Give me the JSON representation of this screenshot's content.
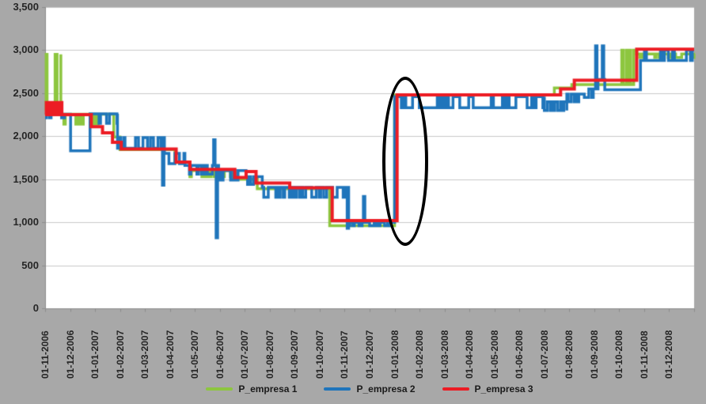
{
  "colors": {
    "canvas_bg": "#A8A8A8",
    "plot_bg": "#FFFFFF",
    "gridline": "#C9C9C9",
    "axis": "#8C8C8C",
    "text": "#262626",
    "annotation": "#000000"
  },
  "chart_data": {
    "type": "line",
    "title": "",
    "xlabel": "",
    "ylabel": "",
    "grid": true,
    "legend_position": "bottom",
    "x_axis": {
      "rotation": -90,
      "months_span": 26,
      "tick_labels": [
        "01-11-2006",
        "01-12-2006",
        "01-01-2007",
        "01-02-2007",
        "01-03-2007",
        "01-04-2007",
        "01-05-2007",
        "01-06-2007",
        "01-07-2007",
        "01-08-2007",
        "01-09-2007",
        "01-10-2007",
        "01-11-2007",
        "01-12-2007",
        "01-01-2008",
        "01-02-2008",
        "01-03-2008",
        "01-04-2008",
        "01-05-2008",
        "01-06-2008",
        "01-07-2008",
        "01-08-2008",
        "01-09-2008",
        "01-10-2008",
        "01-11-2008",
        "01-12-2008"
      ]
    },
    "y_axis": {
      "min": 0,
      "max": 3500,
      "tick_interval": 500,
      "tick_values": [
        0,
        500,
        1000,
        1500,
        2000,
        2500,
        3000,
        3500
      ],
      "tick_labels": [
        "0",
        "500",
        "1,000",
        "1,500",
        "2,000",
        "2,500",
        "3,000",
        "3,500"
      ]
    },
    "series": [
      {
        "name": "P_empresa 1",
        "color": "#8DC63F",
        "width": 3.5,
        "segments": [
          {
            "mode": "band",
            "t0": 0,
            "t1": 0.63,
            "lo": 2300,
            "hi": 2950,
            "duty": 0.5,
            "step": 0.04
          },
          {
            "mode": "band",
            "t0": 0.63,
            "t1": 2.75,
            "lo": 2140,
            "hi": 2255,
            "duty": 0.35
          },
          {
            "mode": "flat",
            "t0": 2.75,
            "t1": 3.0,
            "v": 1990
          },
          {
            "mode": "flat",
            "t0": 3.0,
            "t1": 5.2,
            "v": 1845
          },
          {
            "mode": "flat",
            "t0": 5.2,
            "t1": 5.8,
            "v": 1695
          },
          {
            "mode": "band",
            "t0": 5.8,
            "t1": 7.5,
            "lo": 1530,
            "hi": 1600,
            "duty": 0.3
          },
          {
            "mode": "flat",
            "t0": 7.5,
            "t1": 8.5,
            "v": 1500
          },
          {
            "mode": "flat",
            "t0": 8.5,
            "t1": 11.4,
            "v": 1390
          },
          {
            "mode": "flat",
            "t0": 11.4,
            "t1": 14.0,
            "v": 960
          },
          {
            "mode": "flat",
            "t0": 14.0,
            "t1": 20.4,
            "v": 2480
          },
          {
            "mode": "flat",
            "t0": 20.4,
            "t1": 21.1,
            "v": 2560
          },
          {
            "mode": "flat",
            "t0": 21.1,
            "t1": 23.1,
            "v": 2600
          },
          {
            "mode": "band",
            "t0": 23.1,
            "t1": 23.7,
            "lo": 2600,
            "hi": 3000,
            "duty": 0.5
          },
          {
            "mode": "band",
            "t0": 23.7,
            "t1": 26.0,
            "lo": 2915,
            "hi": 2955,
            "duty": 0.3
          }
        ]
      },
      {
        "name": "P_empresa 2",
        "color": "#1F75BB",
        "width": 3.5,
        "segments": [
          {
            "mode": "band",
            "t0": 0,
            "t1": 1.02,
            "lo": 2215,
            "hi": 2255,
            "duty": 0.3
          },
          {
            "mode": "flat",
            "t0": 1.02,
            "t1": 1.8,
            "v": 1830
          },
          {
            "mode": "band",
            "t0": 1.8,
            "t1": 2.9,
            "lo": 2150,
            "hi": 2260,
            "duty": 0.4
          },
          {
            "mode": "band",
            "t0": 2.9,
            "t1": 4.65,
            "lo": 1860,
            "hi": 1985,
            "duty": 0.4
          },
          {
            "mode": "spike",
            "t": 4.7,
            "v": 1430
          },
          {
            "mode": "band",
            "t0": 4.78,
            "t1": 5.6,
            "lo": 1680,
            "hi": 1800,
            "duty": 0.4
          },
          {
            "mode": "band",
            "t0": 5.6,
            "t1": 6.7,
            "lo": 1560,
            "hi": 1660,
            "duty": 0.4
          },
          {
            "mode": "spike",
            "t": 6.75,
            "v": 1960
          },
          {
            "mode": "spike",
            "t": 6.85,
            "v": 820
          },
          {
            "mode": "band",
            "t0": 6.95,
            "t1": 8.05,
            "lo": 1490,
            "hi": 1600,
            "duty": 0.4
          },
          {
            "mode": "band",
            "t0": 8.05,
            "t1": 8.7,
            "lo": 1440,
            "hi": 1530,
            "duty": 0.4
          },
          {
            "mode": "band",
            "t0": 8.7,
            "t1": 12.05,
            "lo": 1290,
            "hi": 1405,
            "duty": 0.4
          },
          {
            "mode": "spike",
            "t": 12.1,
            "v": 930
          },
          {
            "mode": "band",
            "t0": 12.15,
            "t1": 12.7,
            "lo": 960,
            "hi": 1000,
            "duty": 0.3
          },
          {
            "mode": "spike",
            "t": 12.75,
            "v": 1300
          },
          {
            "mode": "band",
            "t0": 12.82,
            "t1": 14.0,
            "lo": 960,
            "hi": 1000,
            "duty": 0.3
          },
          {
            "mode": "band",
            "t0": 14.0,
            "t1": 20.0,
            "lo": 2330,
            "hi": 2460,
            "duty": 0.5,
            "step": 0.09
          },
          {
            "mode": "band",
            "t0": 20.0,
            "t1": 20.9,
            "lo": 2300,
            "hi": 2400,
            "duty": 0.45
          },
          {
            "mode": "band",
            "t0": 20.9,
            "t1": 21.6,
            "lo": 2400,
            "hi": 2490,
            "duty": 0.4
          },
          {
            "mode": "band",
            "t0": 21.6,
            "t1": 22.0,
            "lo": 2450,
            "hi": 2550,
            "duty": 0.4
          },
          {
            "mode": "spike",
            "t": 22.05,
            "v": 3050
          },
          {
            "mode": "flat",
            "t0": 22.15,
            "t1": 22.25,
            "v": 2660
          },
          {
            "mode": "spike",
            "t": 22.32,
            "v": 3050
          },
          {
            "mode": "flat",
            "t0": 22.42,
            "t1": 23.85,
            "v": 2540
          },
          {
            "mode": "band",
            "t0": 23.85,
            "t1": 26.0,
            "lo": 2880,
            "hi": 3000,
            "duty": 0.45,
            "step": 0.08
          }
        ]
      },
      {
        "name": "P_empresa 3",
        "color": "#EC1C24",
        "width": 4,
        "segments": [
          {
            "mode": "band",
            "t0": 0,
            "t1": 0.67,
            "lo": 2250,
            "hi": 2390,
            "duty": 0.5,
            "step": 0.05
          },
          {
            "mode": "flat",
            "t0": 0.67,
            "t1": 1.85,
            "v": 2250
          },
          {
            "mode": "flat",
            "t0": 1.85,
            "t1": 2.3,
            "v": 2110
          },
          {
            "mode": "flat",
            "t0": 2.3,
            "t1": 2.7,
            "v": 2040
          },
          {
            "mode": "flat",
            "t0": 2.7,
            "t1": 3.05,
            "v": 1930
          },
          {
            "mode": "flat",
            "t0": 3.05,
            "t1": 5.25,
            "v": 1850
          },
          {
            "mode": "flat",
            "t0": 5.25,
            "t1": 5.8,
            "v": 1700
          },
          {
            "mode": "flat",
            "t0": 5.8,
            "t1": 7.6,
            "v": 1615
          },
          {
            "mode": "flat",
            "t0": 7.6,
            "t1": 8.05,
            "v": 1520
          },
          {
            "mode": "flat",
            "t0": 8.05,
            "t1": 8.45,
            "v": 1590
          },
          {
            "mode": "flat",
            "t0": 8.45,
            "t1": 9.8,
            "v": 1455
          },
          {
            "mode": "flat",
            "t0": 9.8,
            "t1": 11.5,
            "v": 1400
          },
          {
            "mode": "flat",
            "t0": 11.5,
            "t1": 14.1,
            "v": 1020
          },
          {
            "mode": "flat",
            "t0": 14.1,
            "t1": 20.65,
            "v": 2480
          },
          {
            "mode": "flat",
            "t0": 20.65,
            "t1": 21.2,
            "v": 2550
          },
          {
            "mode": "flat",
            "t0": 21.2,
            "t1": 23.7,
            "v": 2650
          },
          {
            "mode": "flat",
            "t0": 23.7,
            "t1": 26.0,
            "v": 3010
          }
        ]
      }
    ],
    "annotation": {
      "shape": "ellipse",
      "center_month": 14.43,
      "center_value": 1710,
      "radius_months": 0.92,
      "radius_value": 980,
      "color": "#000000"
    }
  }
}
